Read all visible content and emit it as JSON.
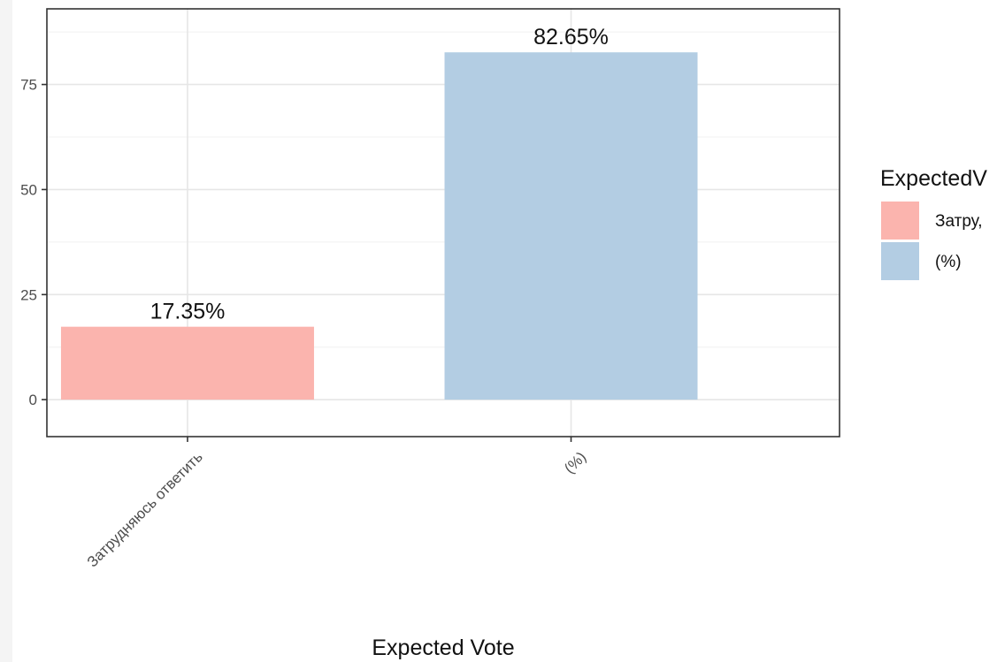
{
  "chart_data": {
    "type": "bar",
    "categories": [
      "Затрудняюсь ответить",
      "(%)"
    ],
    "values": [
      17.35,
      82.65
    ],
    "bar_labels": [
      "17.35%",
      "82.65%"
    ],
    "colors": [
      "#FBB4AE",
      "#B3CDE3"
    ],
    "xlabel": "Expected Vote",
    "ylabel": "",
    "ylim": [
      -8.8,
      93
    ],
    "y_ticks": [
      0,
      25,
      50,
      75
    ],
    "y_tick_labels": [
      "0",
      "25",
      "50",
      "75"
    ],
    "grid": true,
    "legend": {
      "title": "ExpectedV",
      "placement": "right",
      "items": [
        {
          "label": "Затру,",
          "color": "#FBB4AE"
        },
        {
          "label": "(%)",
          "color": "#B3CDE3"
        }
      ]
    }
  }
}
